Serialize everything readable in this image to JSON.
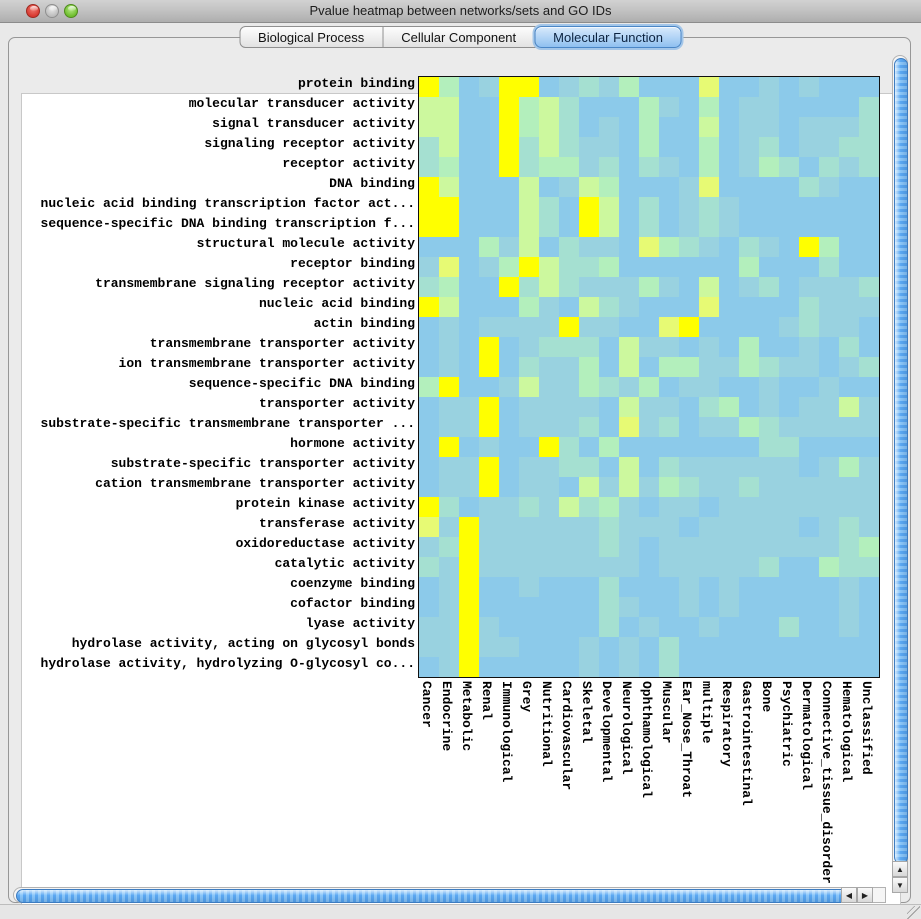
{
  "window": {
    "title": "Pvalue heatmap between networks/sets and GO IDs"
  },
  "tabs": [
    {
      "label": "Biological Process",
      "selected": false
    },
    {
      "label": "Cellular Component",
      "selected": false
    },
    {
      "label": "Molecular Function",
      "selected": true
    }
  ],
  "icons": {
    "scroll_up": "▲",
    "scroll_down": "▼",
    "scroll_left": "◀",
    "scroll_right": "▶"
  },
  "colors": {
    "selected_tab_accent": "#4a86c6",
    "scroll_thumb_blue": "#5ba8f2",
    "heatmap_low": "#8ccaea",
    "heatmap_high": "#ffff00"
  },
  "chart_data": {
    "type": "heatmap",
    "title": "Pvalue heatmap between networks/sets and GO IDs",
    "value_encoding": "color intensity level 0 (blue, high p-value) to 6 (yellow, low p-value)",
    "palette": [
      "#8ccaea",
      "#99d2e0",
      "#a5e0d1",
      "#b3efbc",
      "#ccf89e",
      "#e7fa74",
      "#ffff00"
    ],
    "rows": [
      "protein binding",
      "molecular transducer activity",
      "signal transducer activity",
      "signaling receptor activity",
      "receptor activity",
      "DNA binding",
      "nucleic acid binding transcription factor act...",
      "sequence-specific DNA binding transcription f...",
      "structural molecule activity",
      "receptor binding",
      "transmembrane signaling receptor activity",
      "nucleic acid binding",
      "actin binding",
      "transmembrane transporter activity",
      "ion transmembrane transporter activity",
      "sequence-specific DNA binding",
      "transporter activity",
      "substrate-specific transmembrane transporter ...",
      "hormone activity",
      "substrate-specific transporter activity",
      "cation transmembrane transporter activity",
      "protein kinase activity",
      "transferase activity",
      "oxidoreductase activity",
      "catalytic activity",
      "coenzyme binding",
      "cofactor binding",
      "lyase activity",
      "hydrolase activity, acting on glycosyl bonds",
      "hydrolase activity, hydrolyzing O-glycosyl co..."
    ],
    "cols": [
      "Cancer",
      "Endocrine",
      "Metabolic",
      "Renal",
      "Immunological",
      "Grey",
      "Nutritional",
      "Cardiovascular",
      "Skeletal",
      "Developmental",
      "Neurological",
      "Ophthamological",
      "Muscular",
      "Ear_Nose_Throat",
      "multiple",
      "Respiratory",
      "Gastrointestinal",
      "Bone",
      "Psychiatric",
      "Dermatological",
      "Connective_tissue_disorder",
      "Hematological",
      "Unclassified"
    ],
    "values": [
      [
        6,
        3,
        0,
        1,
        6,
        6,
        0,
        1,
        2,
        1,
        3,
        0,
        0,
        0,
        5,
        0,
        0,
        1,
        0,
        1,
        0,
        0,
        0
      ],
      [
        4,
        4,
        0,
        0,
        6,
        3,
        4,
        2,
        0,
        0,
        0,
        3,
        1,
        0,
        3,
        0,
        1,
        1,
        0,
        0,
        0,
        0,
        2
      ],
      [
        4,
        4,
        0,
        0,
        6,
        3,
        4,
        2,
        0,
        1,
        0,
        3,
        0,
        0,
        4,
        0,
        1,
        1,
        0,
        1,
        1,
        1,
        2
      ],
      [
        2,
        4,
        0,
        0,
        6,
        2,
        4,
        2,
        1,
        1,
        0,
        3,
        0,
        0,
        3,
        0,
        1,
        2,
        0,
        1,
        1,
        2,
        2
      ],
      [
        2,
        3,
        0,
        0,
        6,
        2,
        3,
        3,
        1,
        2,
        0,
        2,
        1,
        0,
        3,
        0,
        1,
        3,
        2,
        0,
        2,
        1,
        2
      ],
      [
        6,
        4,
        0,
        0,
        0,
        4,
        0,
        1,
        4,
        3,
        0,
        0,
        0,
        1,
        5,
        0,
        0,
        0,
        0,
        2,
        1,
        0,
        0
      ],
      [
        6,
        6,
        0,
        0,
        0,
        4,
        2,
        0,
        6,
        4,
        0,
        2,
        0,
        1,
        2,
        1,
        0,
        0,
        0,
        0,
        0,
        0,
        0
      ],
      [
        6,
        6,
        0,
        0,
        0,
        4,
        2,
        0,
        6,
        4,
        0,
        2,
        0,
        1,
        2,
        1,
        0,
        0,
        0,
        0,
        0,
        0,
        0
      ],
      [
        0,
        0,
        0,
        3,
        1,
        4,
        0,
        2,
        1,
        1,
        0,
        5,
        3,
        2,
        1,
        0,
        2,
        1,
        0,
        6,
        3,
        0,
        0
      ],
      [
        1,
        5,
        0,
        1,
        3,
        6,
        4,
        2,
        2,
        3,
        0,
        0,
        0,
        0,
        0,
        0,
        3,
        0,
        0,
        0,
        2,
        0,
        0
      ],
      [
        2,
        3,
        0,
        0,
        6,
        2,
        4,
        2,
        1,
        1,
        1,
        3,
        1,
        0,
        4,
        0,
        1,
        2,
        0,
        1,
        1,
        1,
        2
      ],
      [
        6,
        4,
        0,
        0,
        0,
        3,
        1,
        0,
        4,
        2,
        1,
        0,
        0,
        0,
        5,
        0,
        0,
        0,
        0,
        2,
        1,
        1,
        1
      ],
      [
        0,
        1,
        0,
        1,
        1,
        1,
        1,
        6,
        1,
        1,
        0,
        0,
        5,
        6,
        0,
        0,
        0,
        0,
        1,
        2,
        1,
        1,
        0
      ],
      [
        0,
        1,
        0,
        6,
        0,
        1,
        2,
        2,
        2,
        0,
        4,
        1,
        1,
        0,
        1,
        0,
        3,
        0,
        0,
        1,
        0,
        2,
        0
      ],
      [
        0,
        1,
        0,
        6,
        0,
        2,
        1,
        1,
        3,
        0,
        4,
        0,
        3,
        3,
        1,
        1,
        3,
        2,
        1,
        1,
        0,
        1,
        2
      ],
      [
        3,
        6,
        0,
        0,
        1,
        4,
        1,
        1,
        3,
        2,
        1,
        3,
        0,
        1,
        1,
        0,
        0,
        1,
        0,
        0,
        1,
        0,
        0
      ],
      [
        0,
        1,
        1,
        6,
        0,
        1,
        1,
        1,
        1,
        0,
        4,
        1,
        1,
        0,
        2,
        3,
        0,
        1,
        0,
        1,
        1,
        4,
        1
      ],
      [
        0,
        1,
        1,
        6,
        0,
        1,
        1,
        1,
        2,
        0,
        5,
        1,
        2,
        0,
        1,
        1,
        3,
        2,
        1,
        1,
        1,
        1,
        1
      ],
      [
        0,
        6,
        0,
        1,
        0,
        0,
        6,
        2,
        0,
        3,
        0,
        0,
        0,
        0,
        0,
        0,
        0,
        2,
        2,
        0,
        0,
        0,
        0
      ],
      [
        0,
        1,
        1,
        6,
        0,
        1,
        1,
        2,
        2,
        0,
        4,
        0,
        2,
        1,
        1,
        1,
        1,
        1,
        1,
        0,
        1,
        3,
        1
      ],
      [
        0,
        1,
        1,
        6,
        0,
        1,
        1,
        0,
        4,
        1,
        4,
        1,
        3,
        2,
        1,
        1,
        2,
        1,
        1,
        1,
        1,
        1,
        1
      ],
      [
        6,
        2,
        0,
        1,
        1,
        2,
        1,
        4,
        2,
        3,
        1,
        0,
        1,
        1,
        0,
        1,
        1,
        1,
        1,
        1,
        1,
        1,
        1
      ],
      [
        5,
        1,
        6,
        1,
        1,
        1,
        1,
        1,
        1,
        2,
        1,
        1,
        1,
        0,
        1,
        1,
        1,
        1,
        1,
        0,
        1,
        2,
        1
      ],
      [
        1,
        2,
        6,
        1,
        1,
        1,
        1,
        1,
        1,
        2,
        1,
        0,
        1,
        1,
        1,
        1,
        1,
        1,
        1,
        1,
        1,
        2,
        3
      ],
      [
        2,
        1,
        6,
        1,
        1,
        1,
        1,
        1,
        1,
        1,
        1,
        0,
        1,
        1,
        1,
        1,
        1,
        2,
        0,
        0,
        3,
        2,
        2
      ],
      [
        0,
        1,
        6,
        0,
        0,
        1,
        0,
        0,
        0,
        2,
        0,
        0,
        0,
        1,
        0,
        1,
        0,
        0,
        0,
        0,
        0,
        1,
        0
      ],
      [
        0,
        1,
        6,
        0,
        0,
        0,
        0,
        0,
        0,
        2,
        1,
        0,
        0,
        1,
        0,
        1,
        0,
        0,
        0,
        0,
        0,
        1,
        0
      ],
      [
        1,
        1,
        6,
        1,
        0,
        0,
        0,
        0,
        0,
        2,
        0,
        1,
        0,
        0,
        1,
        0,
        0,
        0,
        2,
        0,
        0,
        1,
        0
      ],
      [
        1,
        1,
        6,
        1,
        1,
        0,
        0,
        0,
        1,
        0,
        1,
        0,
        2,
        0,
        0,
        0,
        0,
        0,
        0,
        0,
        0,
        0,
        0
      ],
      [
        0,
        1,
        6,
        0,
        0,
        0,
        0,
        0,
        1,
        0,
        1,
        0,
        2,
        0,
        0,
        0,
        0,
        0,
        0,
        0,
        0,
        0,
        0
      ]
    ]
  }
}
